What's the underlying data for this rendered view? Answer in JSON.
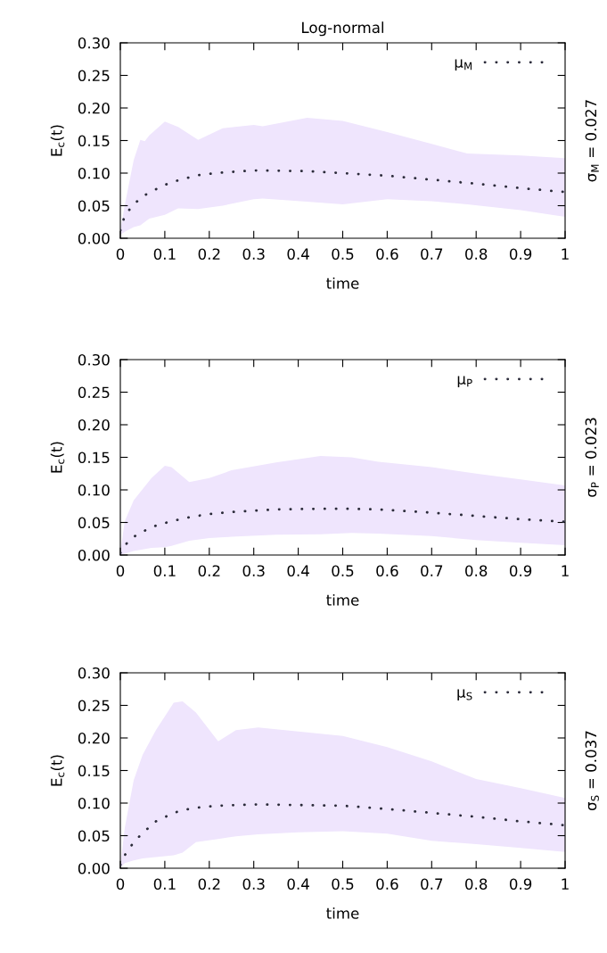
{
  "chart_data": [
    {
      "type": "line",
      "title": "Log-normal",
      "xlabel": "time",
      "ylabel": "E$_{c}$(t)",
      "y2label": "σ$_{M}$ = 0.027",
      "xlim": [
        0,
        1
      ],
      "ylim": [
        0,
        0.3
      ],
      "xticks": [
        0,
        0.1,
        0.2,
        0.3,
        0.4,
        0.5,
        0.6,
        0.7,
        0.8,
        0.9,
        1
      ],
      "yticks": [
        {
          "value": 0,
          "label": "0.00"
        },
        {
          "value": 0.05,
          "label": "0.05"
        },
        {
          "value": 0.1,
          "label": "0.10"
        },
        {
          "value": 0.15,
          "label": "0.15"
        },
        {
          "value": 0.2,
          "label": "0.20"
        },
        {
          "value": 0.25,
          "label": "0.25"
        },
        {
          "value": 0.3,
          "label": "0.30"
        }
      ],
      "grid": false,
      "legend": "top right",
      "line_style": "dotted",
      "marker": "none",
      "series": [
        {
          "name": "μ$_{M}$",
          "color": "#2b2b3a",
          "x": [
            0,
            0.01,
            0.03,
            0.045,
            0.055,
            0.065,
            0.1,
            0.13,
            0.175,
            0.23,
            0.3,
            0.32,
            0.42,
            0.5,
            0.6,
            0.7,
            0.78,
            0.9,
            1.0
          ],
          "values": [
            0.012,
            0.035,
            0.052,
            0.061,
            0.066,
            0.07,
            0.082,
            0.089,
            0.097,
            0.101,
            0.104,
            0.104,
            0.103,
            0.1,
            0.096,
            0.09,
            0.085,
            0.077,
            0.071
          ],
          "lower": [
            0.005,
            0.01,
            0.017,
            0.02,
            0.025,
            0.03,
            0.036,
            0.046,
            0.045,
            0.05,
            0.06,
            0.061,
            0.056,
            0.052,
            0.06,
            0.057,
            0.052,
            0.043,
            0.033
          ],
          "upper": [
            0.012,
            0.051,
            0.12,
            0.151,
            0.149,
            0.158,
            0.179,
            0.171,
            0.151,
            0.169,
            0.174,
            0.172,
            0.185,
            0.18,
            0.163,
            0.145,
            0.13,
            0.127,
            0.123
          ]
        }
      ]
    },
    {
      "type": "line",
      "xlabel": "time",
      "ylabel": "E$_{c}$(t)",
      "y2label": "σ$_{P}$ = 0.023",
      "xlim": [
        0,
        1
      ],
      "ylim": [
        0,
        0.3
      ],
      "xticks": [
        0,
        0.1,
        0.2,
        0.3,
        0.4,
        0.5,
        0.6,
        0.7,
        0.8,
        0.9,
        1
      ],
      "yticks": [
        {
          "value": 0,
          "label": "0.00"
        },
        {
          "value": 0.05,
          "label": "0.05"
        },
        {
          "value": 0.1,
          "label": "0.10"
        },
        {
          "value": 0.15,
          "label": "0.15"
        },
        {
          "value": 0.2,
          "label": "0.20"
        },
        {
          "value": 0.25,
          "label": "0.25"
        },
        {
          "value": 0.3,
          "label": "0.30"
        }
      ],
      "grid": false,
      "legend": "top right",
      "line_style": "dotted",
      "marker": "none",
      "series": [
        {
          "name": "μ$_{P}$",
          "color": "#2b2b3a",
          "x": [
            0,
            0.01,
            0.03,
            0.07,
            0.1,
            0.115,
            0.155,
            0.2,
            0.25,
            0.35,
            0.45,
            0.52,
            0.58,
            0.7,
            0.8,
            0.9,
            1.0
          ],
          "values": [
            0.003,
            0.015,
            0.028,
            0.043,
            0.049,
            0.052,
            0.058,
            0.063,
            0.066,
            0.07,
            0.071,
            0.071,
            0.07,
            0.065,
            0.06,
            0.055,
            0.051
          ],
          "lower": [
            0,
            0.002,
            0.006,
            0.011,
            0.012,
            0.014,
            0.022,
            0.026,
            0.028,
            0.031,
            0.032,
            0.034,
            0.033,
            0.029,
            0.023,
            0.019,
            0.015
          ],
          "upper": [
            0.004,
            0.052,
            0.084,
            0.118,
            0.137,
            0.135,
            0.112,
            0.118,
            0.13,
            0.142,
            0.152,
            0.15,
            0.143,
            0.135,
            0.125,
            0.116,
            0.107
          ]
        }
      ]
    },
    {
      "type": "line",
      "xlabel": "time",
      "ylabel": "E$_{c}$(t)",
      "y2label": "σ$_{S}$ = 0.037",
      "xlim": [
        0,
        1
      ],
      "ylim": [
        0,
        0.3
      ],
      "xticks": [
        0,
        0.1,
        0.2,
        0.3,
        0.4,
        0.5,
        0.6,
        0.7,
        0.8,
        0.9,
        1
      ],
      "yticks": [
        {
          "value": 0,
          "label": "0.00"
        },
        {
          "value": 0.05,
          "label": "0.05"
        },
        {
          "value": 0.1,
          "label": "0.10"
        },
        {
          "value": 0.15,
          "label": "0.15"
        },
        {
          "value": 0.2,
          "label": "0.20"
        },
        {
          "value": 0.25,
          "label": "0.25"
        },
        {
          "value": 0.3,
          "label": "0.30"
        }
      ],
      "grid": false,
      "legend": "top right",
      "line_style": "dotted",
      "marker": "none",
      "series": [
        {
          "name": "μ$_{S}$",
          "color": "#2b2b3a",
          "x": [
            0,
            0.01,
            0.03,
            0.05,
            0.08,
            0.12,
            0.14,
            0.17,
            0.22,
            0.26,
            0.31,
            0.4,
            0.5,
            0.6,
            0.7,
            0.8,
            0.9,
            1.0
          ],
          "values": [
            0.005,
            0.02,
            0.04,
            0.054,
            0.072,
            0.085,
            0.089,
            0.093,
            0.096,
            0.097,
            0.098,
            0.097,
            0.096,
            0.091,
            0.085,
            0.079,
            0.072,
            0.066
          ],
          "lower": [
            0.001,
            0.008,
            0.012,
            0.015,
            0.017,
            0.02,
            0.024,
            0.04,
            0.045,
            0.049,
            0.052,
            0.055,
            0.057,
            0.053,
            0.042,
            0.037,
            0.031,
            0.025
          ],
          "upper": [
            0.003,
            0.062,
            0.135,
            0.174,
            0.212,
            0.254,
            0.256,
            0.239,
            0.195,
            0.212,
            0.216,
            0.21,
            0.203,
            0.186,
            0.164,
            0.137,
            0.123,
            0.108
          ]
        }
      ]
    }
  ]
}
